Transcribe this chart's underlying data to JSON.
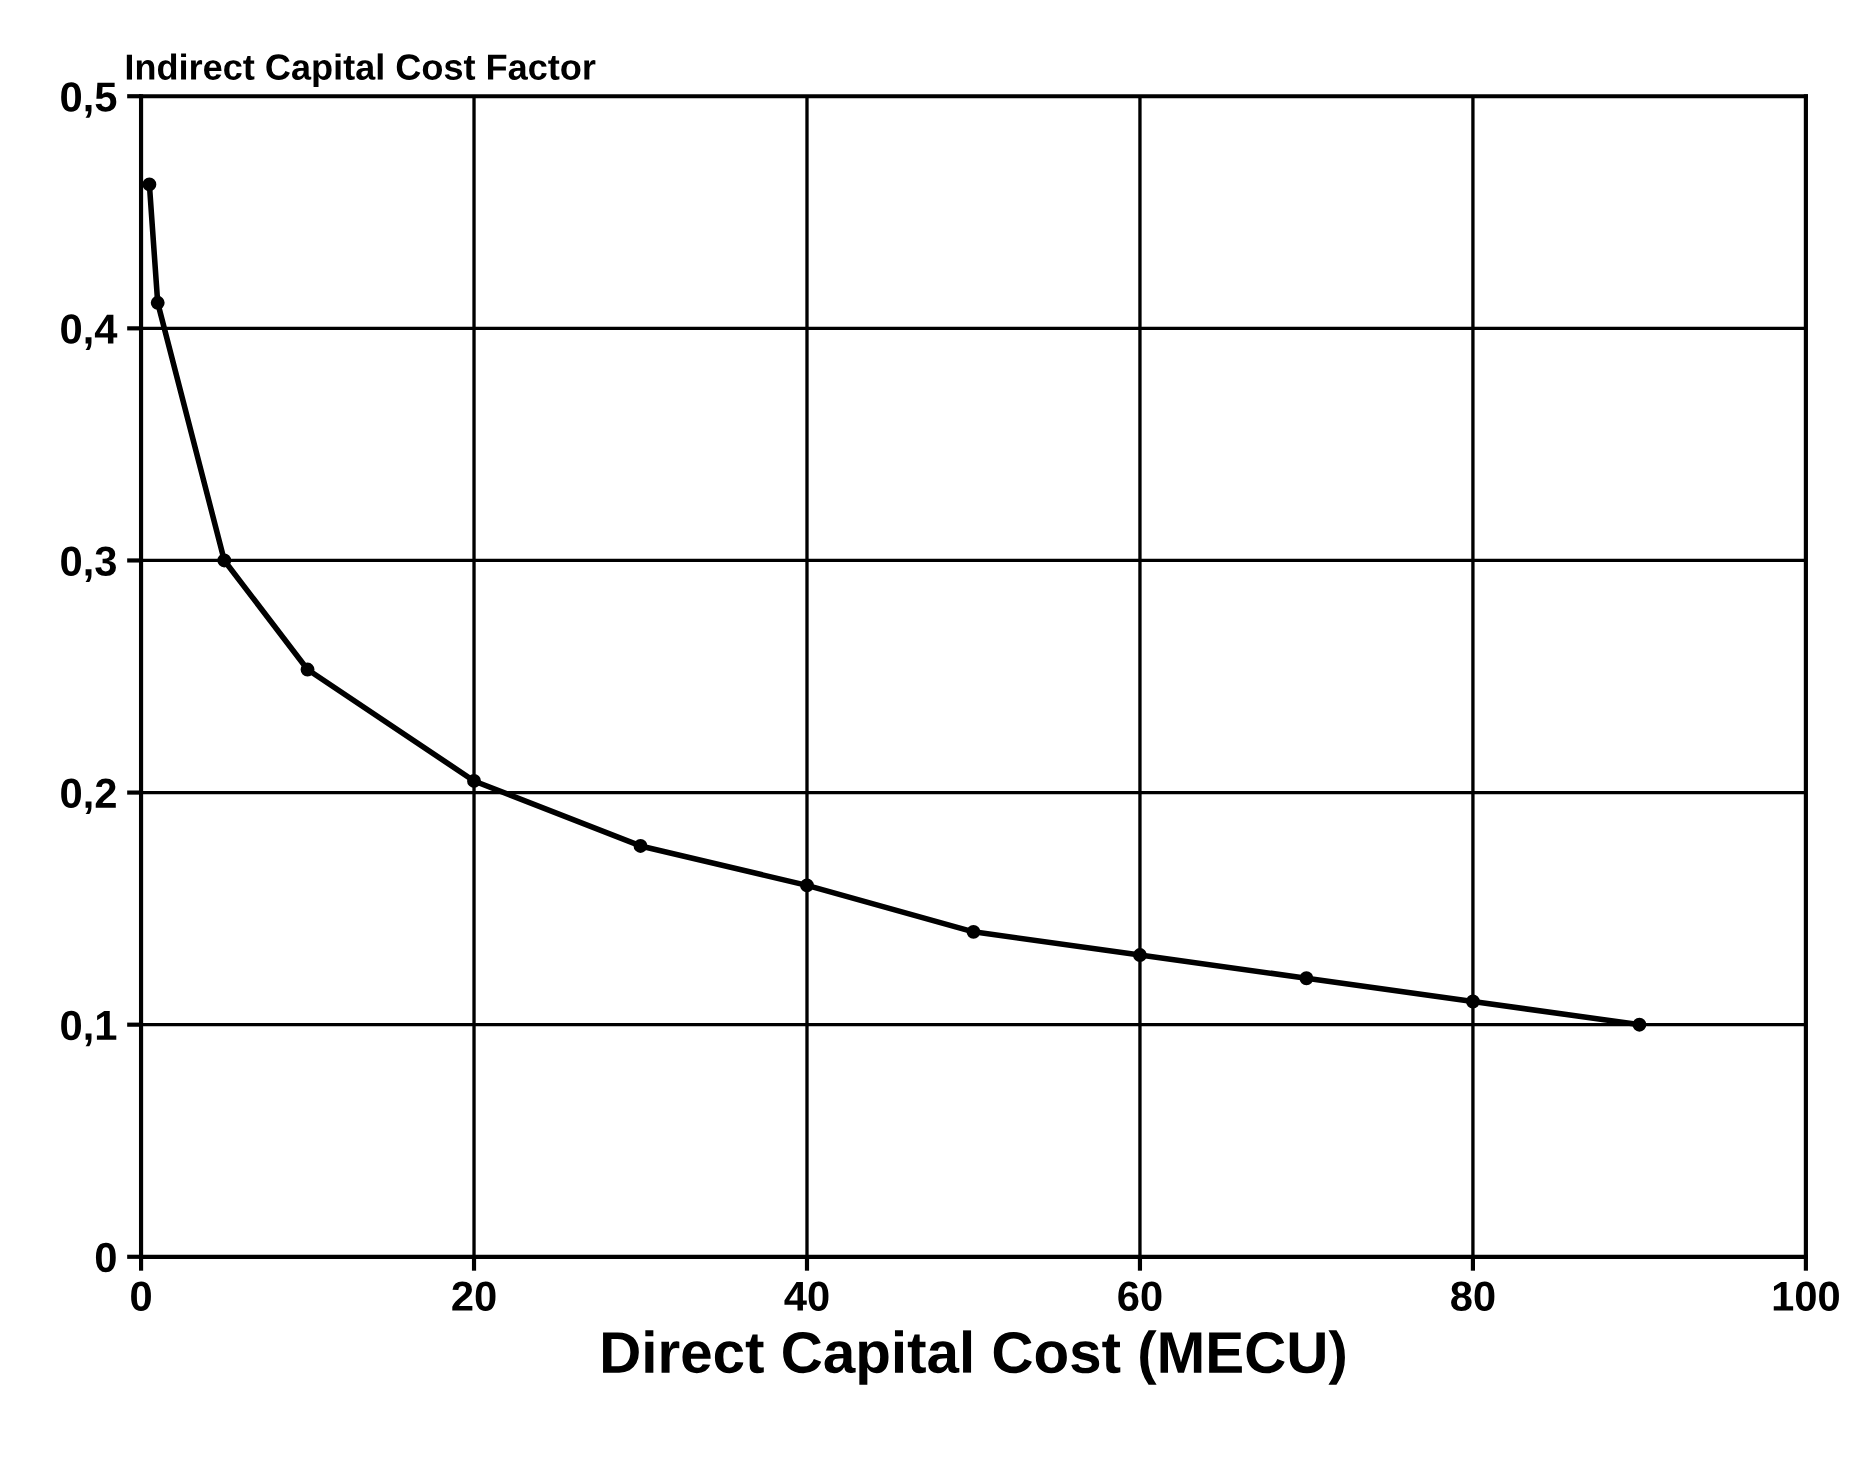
{
  "chart_data": {
    "type": "line",
    "title": "Indirect Capital Cost Factor",
    "xlabel": "Direct Capital Cost (MECU)",
    "x": [
      0.5,
      1,
      5,
      10,
      20,
      30,
      40,
      50,
      60,
      70,
      80,
      90
    ],
    "series": [
      {
        "color": "#000000",
        "values": [
          0.462,
          0.411,
          0.3,
          0.253,
          0.205,
          0.177,
          0.16,
          0.14,
          0.13,
          0.12,
          0.11,
          0.1
        ]
      }
    ],
    "xlim": [
      0,
      100
    ],
    "xticks": [
      0,
      20,
      40,
      60,
      80,
      100
    ],
    "ylim": [
      0,
      0.5
    ],
    "yticks": [
      0,
      {
        "value": 0.1,
        "label": "0,1"
      },
      {
        "value": 0.2,
        "label": "0,2"
      },
      {
        "value": 0.3,
        "label": "0,3"
      },
      {
        "value": 0.4,
        "label": "0,4"
      },
      {
        "value": 0.5,
        "label": "0,5"
      }
    ],
    "grid": true,
    "marker": "circle",
    "line_style": "solid"
  }
}
